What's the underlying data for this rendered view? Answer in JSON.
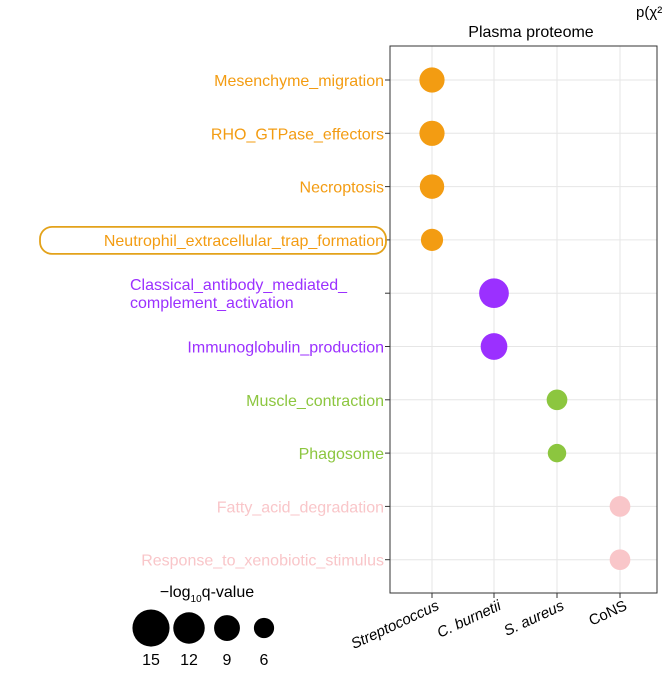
{
  "chart_data": {
    "type": "scatter",
    "title": "Plasma proteome",
    "corner_label": "p(χ²",
    "x_categories": [
      "Streptococcus",
      "C. burnetii",
      "S. aureus",
      "CoNS"
    ],
    "x_italic": [
      true,
      true,
      true,
      false
    ],
    "y_categories": [
      "Mesenchyme_migration",
      "RHO_GTPase_effectors",
      "Necroptosis",
      "Neutrophil_extracellular_trap_formation",
      "Classical_antibody_mediated_\ncomplement_activation",
      "Immunoglobulin_production",
      "Muscle_contraction",
      "Phagosome",
      "Fatty_acid_degradation",
      "Response_to_xenobiotic_stimulus"
    ],
    "y_colors": [
      "#F39C12",
      "#F39C12",
      "#F39C12",
      "#F39C12",
      "#9B30FF",
      "#9B30FF",
      "#8CC63F",
      "#8CC63F",
      "#F9C6C9",
      "#F9C6C9"
    ],
    "highlighted_label": "Neutrophil_extracellular_trap_formation",
    "points": [
      {
        "term": "Mesenchyme_migration",
        "group": "Streptococcus",
        "neglog10q": 12,
        "color": "#F39C12"
      },
      {
        "term": "RHO_GTPase_effectors",
        "group": "Streptococcus",
        "neglog10q": 12,
        "color": "#F39C12"
      },
      {
        "term": "Necroptosis",
        "group": "Streptococcus",
        "neglog10q": 11.5,
        "color": "#F39C12"
      },
      {
        "term": "Neutrophil_extracellular_trap_formation",
        "group": "Streptococcus",
        "neglog10q": 10,
        "color": "#F39C12"
      },
      {
        "term": "Classical_antibody_mediated_\ncomplement_activation",
        "group": "C. burnetii",
        "neglog10q": 15,
        "color": "#9B30FF"
      },
      {
        "term": "Immunoglobulin_production",
        "group": "C. burnetii",
        "neglog10q": 13,
        "color": "#9B30FF"
      },
      {
        "term": "Muscle_contraction",
        "group": "S. aureus",
        "neglog10q": 9,
        "color": "#8CC63F"
      },
      {
        "term": "Phagosome",
        "group": "S. aureus",
        "neglog10q": 7.5,
        "color": "#8CC63F"
      },
      {
        "term": "Fatty_acid_degradation",
        "group": "CoNS",
        "neglog10q": 9,
        "color": "#F9C6C9"
      },
      {
        "term": "Response_to_xenobiotic_stimulus",
        "group": "CoNS",
        "neglog10q": 9,
        "color": "#F9C6C9"
      }
    ],
    "size_legend": {
      "title_prefix": "−log",
      "title_subscript": "10",
      "title_suffix": "q-value",
      "values": [
        15,
        12,
        9,
        6
      ],
      "labels": [
        "15",
        "12",
        "9",
        "6"
      ]
    },
    "grid": true,
    "legend_position": "bottom-left"
  }
}
